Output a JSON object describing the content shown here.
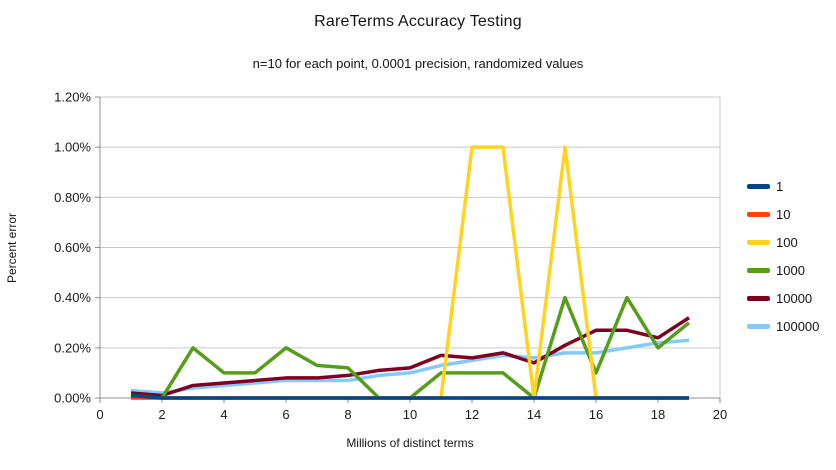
{
  "chart_data": {
    "type": "line",
    "title": "RareTerms Accuracy Testing",
    "subtitle": "n=10 for each point, 0.0001 precision, randomized values",
    "xlabel": "Millions of distinct terms",
    "ylabel": "Percent error",
    "x": [
      1,
      2,
      3,
      4,
      5,
      6,
      7,
      8,
      9,
      10,
      11,
      12,
      13,
      14,
      15,
      16,
      17,
      18,
      19
    ],
    "series": [
      {
        "name": "1",
        "color": "#004586",
        "values": [
          0.01,
          0.0,
          0.0,
          0.0,
          0.0,
          0.0,
          0.0,
          0.0,
          0.0,
          0.0,
          0.0,
          0.0,
          0.0,
          0.0,
          0.0,
          0.0,
          0.0,
          0.0,
          0.0
        ]
      },
      {
        "name": "10",
        "color": "#FF420E",
        "values": [
          0.0,
          0.0,
          0.0,
          0.0,
          0.0,
          0.0,
          0.0,
          0.0,
          0.0,
          0.0,
          0.0,
          0.0,
          0.0,
          0.0,
          0.0,
          0.0,
          0.0,
          0.0,
          0.0
        ]
      },
      {
        "name": "100",
        "color": "#FFD320",
        "values": [
          0.0,
          0.0,
          0.0,
          0.0,
          0.0,
          0.0,
          0.0,
          0.0,
          0.0,
          0.0,
          0.0,
          1.0,
          1.0,
          0.0,
          1.0,
          0.0,
          0.0,
          0.0,
          0.0
        ]
      },
      {
        "name": "1000",
        "color": "#579D1C",
        "values": [
          0.01,
          0.0,
          0.2,
          0.1,
          0.1,
          0.2,
          0.13,
          0.12,
          0.0,
          0.0,
          0.1,
          0.1,
          0.1,
          0.0,
          0.4,
          0.1,
          0.4,
          0.2,
          0.3
        ]
      },
      {
        "name": "10000",
        "color": "#7E0021",
        "values": [
          0.02,
          0.01,
          0.05,
          0.06,
          0.07,
          0.08,
          0.08,
          0.09,
          0.11,
          0.12,
          0.17,
          0.16,
          0.18,
          0.14,
          0.21,
          0.27,
          0.27,
          0.24,
          0.32
        ]
      },
      {
        "name": "100000",
        "color": "#83CAFF",
        "values": [
          0.03,
          0.02,
          0.04,
          0.05,
          0.06,
          0.07,
          0.07,
          0.07,
          0.09,
          0.1,
          0.13,
          0.15,
          0.17,
          0.16,
          0.18,
          0.18,
          0.2,
          0.22,
          0.23
        ]
      }
    ],
    "draw_order": [
      "100000",
      "10000",
      "1000",
      "100",
      "10",
      "1"
    ],
    "xlim": [
      0,
      20
    ],
    "ylim": [
      0,
      1.2
    ],
    "x_ticks": [
      0,
      2,
      4,
      6,
      8,
      10,
      12,
      14,
      16,
      18,
      20
    ],
    "y_ticks": [
      "0.00%",
      "0.20%",
      "0.40%",
      "0.60%",
      "0.80%",
      "1.00%",
      "1.20%"
    ],
    "grid": true,
    "legend_position": "right",
    "styles": {
      "grid_color": "#c9c9c9",
      "axis_color": "#8f8f8f",
      "tick_label_color": "#1a1a1a",
      "line_width": 3.5
    }
  }
}
